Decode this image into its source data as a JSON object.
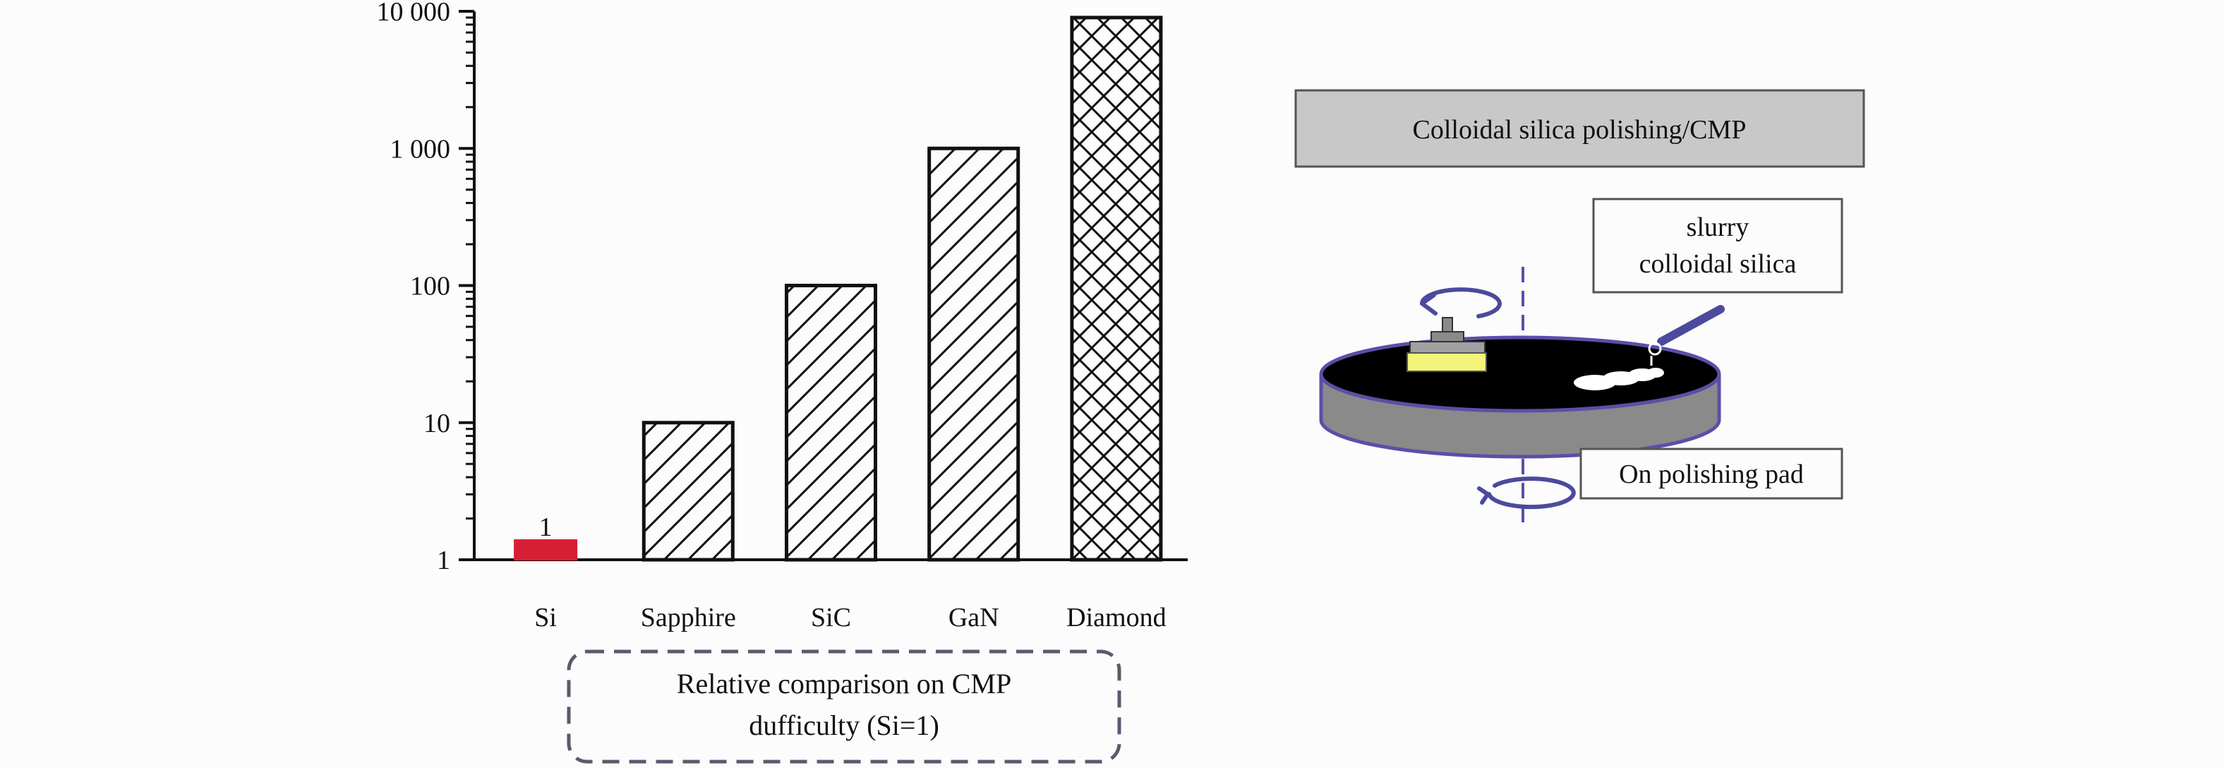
{
  "chart_data": {
    "type": "bar",
    "scale": "log",
    "categories": [
      "Si",
      "Sapphire",
      "SiC",
      "GaN",
      "Diamond"
    ],
    "values": [
      1,
      10,
      100,
      1000,
      9000
    ],
    "ylim": [
      1,
      10000
    ],
    "yticks": [
      {
        "value": 1,
        "label": "1"
      },
      {
        "value": 10,
        "label": "10"
      },
      {
        "value": 100,
        "label": "100"
      },
      {
        "value": 1000,
        "label": "1 000"
      },
      {
        "value": 10000,
        "label": "10 000"
      }
    ],
    "bar_fills": [
      "red",
      "hatch-diagonal",
      "hatch-diagonal",
      "hatch-diagonal",
      "hatch-cross"
    ],
    "bar_colors": {
      "highlight": "#d81e35",
      "outline": "#111111"
    },
    "data_labels": [
      {
        "category": "Si",
        "text": "1"
      }
    ],
    "caption": [
      "Relative comparison on CMP",
      "dufficulty (Si=1)"
    ],
    "grid": false
  },
  "diagram": {
    "title": "Colloidal silica polishing/CMP",
    "slurry_label": [
      "slurry",
      "colloidal silica"
    ],
    "pad_label": "On polishing pad",
    "colors": {
      "title_box": "#c8c8c8",
      "pad_top": "#000000",
      "pad_side": "#8a8a8a",
      "pad_outline": "#5a4fa8",
      "wafer": "#f2f57a",
      "arrow": "#4b4a9c"
    }
  }
}
